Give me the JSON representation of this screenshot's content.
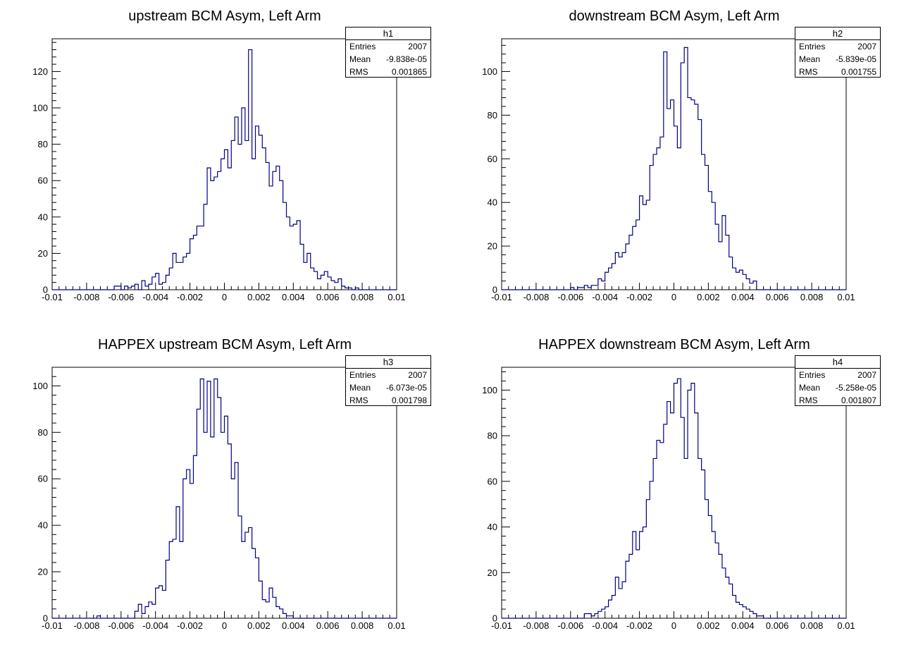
{
  "chart_data": [
    {
      "type": "histogram",
      "title": "upstream BCM Asym, Left Arm",
      "xlim": [
        -0.01,
        0.01
      ],
      "ylim": [
        0,
        138
      ],
      "bins": 100,
      "x_ticks": [
        "-0.01",
        "-0.008",
        "-0.006",
        "-0.004",
        "-0.002",
        "0",
        "0.002",
        "0.004",
        "0.006",
        "0.008",
        "0.01"
      ],
      "y_ticks": [
        "0",
        "20",
        "40",
        "60",
        "80",
        "100",
        "120"
      ],
      "line_color": "#000080",
      "stats": {
        "name": "h1",
        "entries_label": "Entries",
        "entries": "2007",
        "mean_label": "Mean",
        "mean": "-9.838e-05",
        "rms_label": "RMS",
        "rms": "0.001865"
      },
      "bin_counts": [
        0,
        0,
        0,
        0,
        0,
        0,
        0,
        0,
        0,
        0,
        0,
        0,
        0,
        0,
        0,
        0,
        0,
        0,
        2,
        2,
        0,
        2,
        1,
        2,
        3,
        0,
        5,
        2,
        3,
        7,
        9,
        3,
        4,
        8,
        12,
        20,
        15,
        15,
        18,
        20,
        28,
        30,
        35,
        35,
        47,
        67,
        60,
        62,
        65,
        72,
        77,
        67,
        82,
        95,
        80,
        100,
        82,
        132,
        72,
        90,
        85,
        78,
        70,
        57,
        65,
        68,
        60,
        48,
        40,
        35,
        36,
        38,
        25,
        15,
        20,
        12,
        10,
        6,
        8,
        10,
        7,
        5,
        4,
        6,
        2,
        1,
        1,
        0,
        1,
        0,
        0,
        0,
        0,
        0,
        0,
        0,
        0,
        0,
        0,
        0
      ]
    },
    {
      "type": "histogram",
      "title": "downstream BCM Asym, Left Arm",
      "xlim": [
        -0.01,
        0.01
      ],
      "ylim": [
        0,
        115
      ],
      "bins": 100,
      "x_ticks": [
        "-0.01",
        "-0.008",
        "-0.006",
        "-0.004",
        "-0.002",
        "0",
        "0.002",
        "0.004",
        "0.006",
        "0.008",
        "0.01"
      ],
      "y_ticks": [
        "0",
        "20",
        "40",
        "60",
        "80",
        "100"
      ],
      "line_color": "#000080",
      "stats": {
        "name": "h2",
        "entries_label": "Entries",
        "entries": "2007",
        "mean_label": "Mean",
        "mean": "-5.839e-05",
        "rms_label": "RMS",
        "rms": "0.001755"
      },
      "bin_counts": [
        0,
        0,
        0,
        0,
        0,
        0,
        0,
        0,
        0,
        0,
        0,
        0,
        0,
        0,
        0,
        0,
        0,
        0,
        0,
        0,
        1,
        0,
        1,
        1,
        2,
        1,
        2,
        2,
        5,
        4,
        8,
        10,
        12,
        17,
        15,
        17,
        21,
        25,
        29,
        32,
        43,
        39,
        41,
        57,
        62,
        65,
        70,
        109,
        83,
        87,
        75,
        65,
        104,
        111,
        88,
        87,
        85,
        78,
        62,
        57,
        45,
        40,
        30,
        22,
        34,
        25,
        15,
        10,
        8,
        9,
        7,
        5,
        3,
        4,
        0,
        0,
        0,
        0,
        0,
        0,
        0,
        0,
        0,
        0,
        0,
        0,
        0,
        0,
        0,
        0,
        0,
        0,
        0,
        0,
        0,
        0,
        0,
        0,
        0,
        0
      ]
    },
    {
      "type": "histogram",
      "title": "HAPPEX upstream BCM Asym, Left Arm",
      "xlim": [
        -0.01,
        0.01
      ],
      "ylim": [
        0,
        108
      ],
      "bins": 100,
      "x_ticks": [
        "-0.01",
        "-0.008",
        "-0.006",
        "-0.004",
        "-0.002",
        "0",
        "0.002",
        "0.004",
        "0.006",
        "0.008",
        "0.01"
      ],
      "y_ticks": [
        "0",
        "20",
        "40",
        "60",
        "80",
        "100"
      ],
      "line_color": "#000080",
      "stats": {
        "name": "h3",
        "entries_label": "Entries",
        "entries": "2007",
        "mean_label": "Mean",
        "mean": "-6.073e-05",
        "rms_label": "RMS",
        "rms": "0.001798"
      },
      "bin_counts": [
        0,
        0,
        0,
        0,
        0,
        0,
        0,
        0,
        0,
        0,
        0,
        0,
        0,
        1,
        0,
        0,
        0,
        0,
        0,
        0,
        0,
        0,
        0,
        0,
        3,
        6,
        2,
        5,
        7,
        6,
        13,
        14,
        12,
        25,
        33,
        34,
        48,
        33,
        60,
        64,
        58,
        70,
        90,
        103,
        80,
        102,
        78,
        103,
        95,
        80,
        87,
        75,
        60,
        67,
        44,
        33,
        37,
        39,
        30,
        26,
        16,
        8,
        7,
        13,
        9,
        5,
        4,
        2,
        1,
        1,
        0,
        0,
        0,
        0,
        0,
        0,
        0,
        0,
        0,
        0,
        0,
        0,
        0,
        0,
        0,
        0,
        0,
        0,
        0,
        0,
        0,
        0,
        0,
        0,
        0,
        0,
        0,
        0,
        0,
        0
      ]
    },
    {
      "type": "histogram",
      "title": "HAPPEX downstream BCM Asym, Left Arm",
      "xlim": [
        -0.01,
        0.01
      ],
      "ylim": [
        0,
        110
      ],
      "bins": 100,
      "x_ticks": [
        "-0.01",
        "-0.008",
        "-0.006",
        "-0.004",
        "-0.002",
        "0",
        "0.002",
        "0.004",
        "0.006",
        "0.008",
        "0.01"
      ],
      "y_ticks": [
        "0",
        "20",
        "40",
        "60",
        "80",
        "100"
      ],
      "line_color": "#000080",
      "stats": {
        "name": "h4",
        "entries_label": "Entries",
        "entries": "2007",
        "mean_label": "Mean",
        "mean": "-5.258e-05",
        "rms_label": "RMS",
        "rms": "0.001807"
      },
      "bin_counts": [
        0,
        0,
        0,
        0,
        0,
        0,
        0,
        0,
        0,
        0,
        0,
        0,
        0,
        0,
        0,
        0,
        0,
        0,
        0,
        0,
        0,
        0,
        0,
        0,
        2,
        2,
        1,
        2,
        3,
        4,
        5,
        8,
        10,
        18,
        13,
        16,
        25,
        28,
        38,
        30,
        38,
        40,
        52,
        60,
        70,
        78,
        77,
        85,
        95,
        90,
        103,
        105,
        88,
        70,
        100,
        103,
        90,
        70,
        65,
        52,
        45,
        38,
        33,
        28,
        22,
        18,
        15,
        10,
        7,
        6,
        5,
        4,
        3,
        2,
        1,
        1,
        0,
        0,
        0,
        0,
        0,
        0,
        0,
        0,
        0,
        0,
        0,
        0,
        0,
        0,
        0,
        0,
        0,
        0,
        0,
        0,
        0,
        0,
        0,
        0
      ]
    }
  ]
}
